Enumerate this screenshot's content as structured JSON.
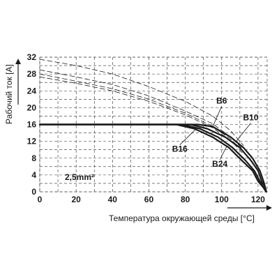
{
  "chart_data": {
    "type": "line",
    "xlabel": "Температура окружающей среды [°C]",
    "ylabel": "Рабочий ток [A]",
    "xlim": [
      0,
      125
    ],
    "ylim": [
      0,
      32
    ],
    "x_ticks": [
      0,
      20,
      40,
      60,
      80,
      100,
      120
    ],
    "y_ticks": [
      0,
      4,
      8,
      12,
      16,
      20,
      24,
      28,
      32
    ],
    "grid": true,
    "condition_label": "2,5mm²",
    "series": [
      {
        "name": "B6",
        "style": "solid",
        "x": [
          0,
          87,
          95,
          105,
          112,
          117,
          121,
          123,
          124,
          124.5
        ],
        "y": [
          16,
          16,
          15.5,
          13,
          10.5,
          8,
          5,
          2.5,
          1,
          0
        ]
      },
      {
        "name": "B10",
        "style": "solid",
        "x": [
          0,
          83,
          92,
          102,
          110,
          116,
          120,
          122,
          124,
          124.5
        ],
        "y": [
          16,
          16,
          15,
          13,
          10.5,
          7.5,
          5,
          2.5,
          1,
          0
        ]
      },
      {
        "name": "B16",
        "style": "solid",
        "x": [
          0,
          78,
          88,
          98,
          106,
          113,
          118,
          121,
          123,
          124.5
        ],
        "y": [
          16,
          16,
          15,
          13,
          10.5,
          7.5,
          5,
          2.5,
          1,
          0
        ]
      },
      {
        "name": "B24",
        "style": "solid",
        "x": [
          0,
          75,
          85,
          95,
          104,
          111,
          117,
          120,
          123,
          124.5
        ],
        "y": [
          16,
          16,
          15,
          13,
          10.5,
          7.5,
          5,
          2.5,
          1,
          0
        ]
      },
      {
        "name": "",
        "style": "dashed",
        "x": [
          0,
          20,
          40,
          60,
          80,
          95,
          105,
          112
        ],
        "y": [
          31.5,
          30,
          28,
          25,
          21.5,
          18,
          14.5,
          11
        ]
      },
      {
        "name": "",
        "style": "dashed",
        "x": [
          0,
          20,
          40,
          60,
          80,
          95,
          105,
          112
        ],
        "y": [
          29,
          27.3,
          25.5,
          22.8,
          19.2,
          16.2,
          13,
          10
        ]
      },
      {
        "name": "",
        "style": "dashed",
        "x": [
          0,
          20,
          40,
          60,
          80,
          95,
          105,
          112
        ],
        "y": [
          28,
          26.3,
          24.5,
          22,
          18.7,
          15.6,
          12.5,
          9.5
        ]
      },
      {
        "name": "",
        "style": "dashed",
        "x": [
          0,
          20,
          40,
          60,
          80,
          95,
          105,
          112
        ],
        "y": [
          27.3,
          25.8,
          24,
          21.5,
          18.3,
          15.2,
          12.2,
          9
        ]
      }
    ],
    "curve_labels": [
      {
        "text": "B6",
        "x": 100,
        "y": 21,
        "anchor_x": 95,
        "anchor_y": 15.4
      },
      {
        "text": "B10",
        "x": 116,
        "y": 17,
        "anchor_x": 108,
        "anchor_y": 12
      },
      {
        "text": "B16",
        "x": 77,
        "y": 9.5,
        "anchor_x": 86,
        "anchor_y": 15
      },
      {
        "text": "B24",
        "x": 99,
        "y": 6,
        "anchor_x": 103,
        "anchor_y": 11
      }
    ],
    "colors": {
      "line": "#1a1a1a",
      "grid": "#2a2a2a",
      "background": "#ffffff"
    }
  }
}
